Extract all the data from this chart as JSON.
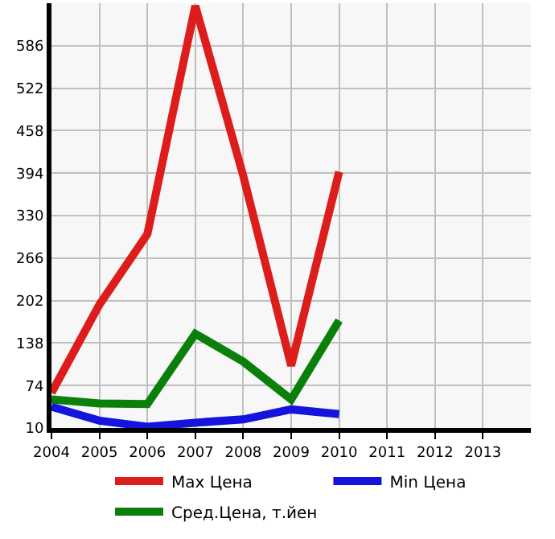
{
  "chart_data": {
    "type": "line",
    "x": [
      2004,
      2005,
      2006,
      2007,
      2008,
      2009,
      2010
    ],
    "series": [
      {
        "name": "Max Цена",
        "color": "#dd1c1c",
        "values": [
          63,
          196,
          302,
          646,
          390,
          104,
          396
        ]
      },
      {
        "name": "Min Цена",
        "color": "#1414dd",
        "values": [
          42,
          21,
          12,
          18,
          23,
          38,
          31
        ]
      },
      {
        "name": "Сред.Цена, т.йен",
        "color": "#0a800a",
        "values": [
          53,
          47,
          46,
          152,
          110,
          53,
          172
        ]
      }
    ],
    "xlim": [
      2004,
      2014
    ],
    "xticks": [
      2004,
      2005,
      2006,
      2007,
      2008,
      2009,
      2010,
      2011,
      2012,
      2013
    ],
    "ylim": [
      10,
      650
    ],
    "yticks": [
      10,
      74,
      138,
      202,
      266,
      330,
      394,
      458,
      522,
      586
    ],
    "grid": true,
    "legend": "bottom",
    "marker": "none",
    "line_style": "solid"
  }
}
